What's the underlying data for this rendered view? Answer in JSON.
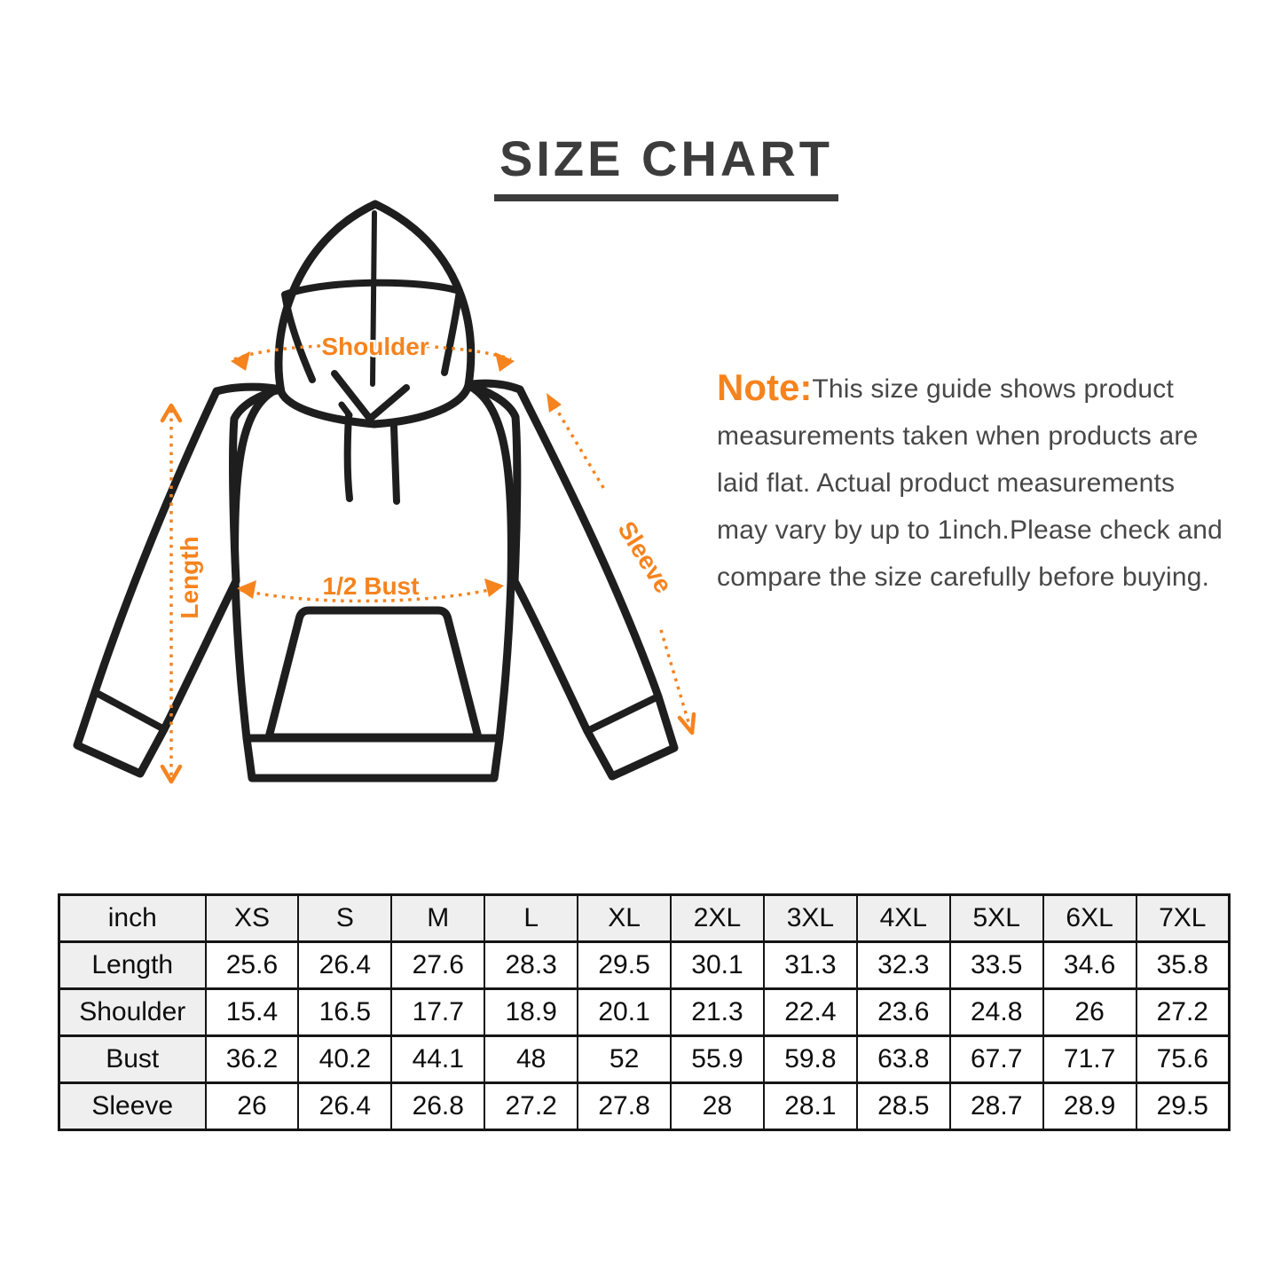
{
  "title": {
    "text": "SIZE CHART"
  },
  "diagram": {
    "accent_color": "#F5831E",
    "outline_color": "#1e1e1e",
    "labels": {
      "shoulder": "Shoulder",
      "length": "Length",
      "half_bust": "1/2 Bust",
      "sleeve": "Sleeve"
    }
  },
  "note": {
    "label": "Note:",
    "lines": [
      "This size guide shows product",
      "measurements taken when products are",
      "laid flat. Actual product measurements",
      "may vary by up to 1inch.Please check and",
      "compare the size carefully before buying."
    ]
  },
  "size_table": {
    "unit_header": "inch",
    "size_columns": [
      "XS",
      "S",
      "M",
      "L",
      "XL",
      "2XL",
      "3XL",
      "4XL",
      "5XL",
      "6XL",
      "7XL"
    ],
    "rows": [
      {
        "label": "Length",
        "values": [
          "25.6",
          "26.4",
          "27.6",
          "28.3",
          "29.5",
          "30.1",
          "31.3",
          "32.3",
          "33.5",
          "34.6",
          "35.8"
        ]
      },
      {
        "label": "Shoulder",
        "values": [
          "15.4",
          "16.5",
          "17.7",
          "18.9",
          "20.1",
          "21.3",
          "22.4",
          "23.6",
          "24.8",
          "26",
          "27.2"
        ]
      },
      {
        "label": "Bust",
        "values": [
          "36.2",
          "40.2",
          "44.1",
          "48",
          "52",
          "55.9",
          "59.8",
          "63.8",
          "67.7",
          "71.7",
          "75.6"
        ]
      },
      {
        "label": "Sleeve",
        "values": [
          "26",
          "26.4",
          "26.8",
          "27.2",
          "27.8",
          "28",
          "28.1",
          "28.5",
          "28.7",
          "28.9",
          "29.5"
        ]
      }
    ]
  }
}
